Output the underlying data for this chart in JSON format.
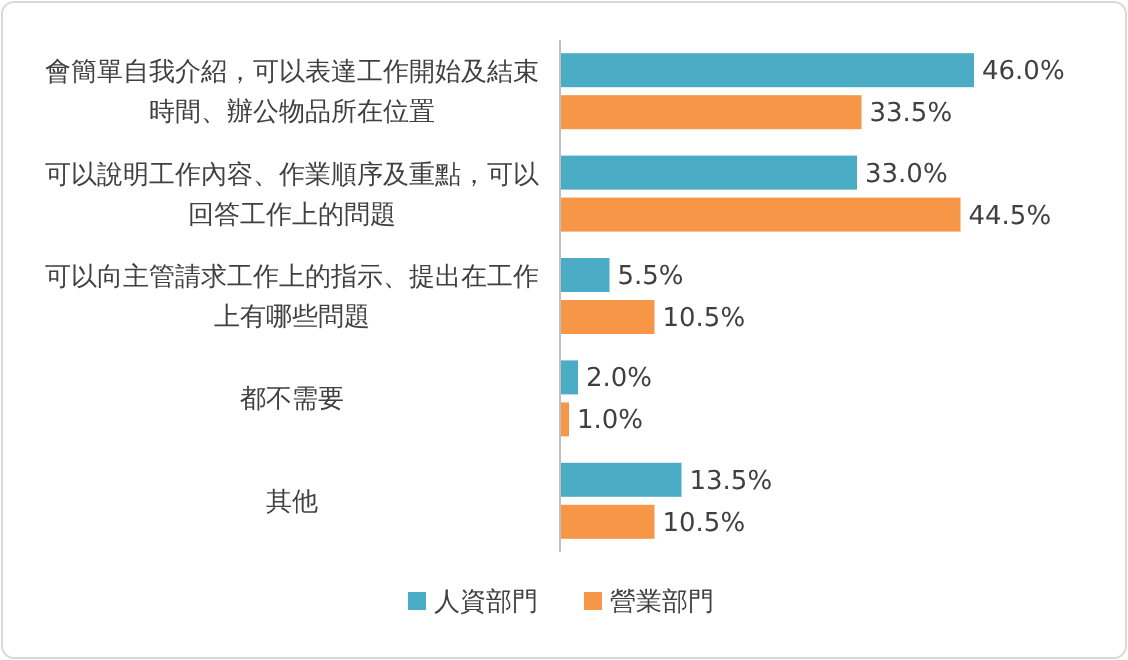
{
  "chart_data": {
    "type": "bar",
    "orientation": "horizontal",
    "legend": "bottom",
    "categories": [
      "會簡單自我介紹，可以表達工作開始及結束時間、辦公物品所在位置",
      "可以說明工作內容、作業順序及重點，可以回答工作上的問題",
      "可以向主管請求工作上的指示、提出在工作上有哪些問題",
      "都不需要",
      "其他"
    ],
    "series": [
      {
        "name": "人資部門",
        "color": "#4bacc6",
        "values": [
          46.0,
          33.0,
          5.5,
          2.0,
          13.5
        ],
        "value_labels": [
          "46.0%",
          "33.0%",
          "5.5%",
          "2.0%",
          "13.5%"
        ]
      },
      {
        "name": "營業部門",
        "color": "#f79646",
        "values": [
          33.5,
          44.5,
          10.5,
          1.0,
          10.5
        ],
        "value_labels": [
          "33.5%",
          "44.5%",
          "10.5%",
          "1.0%",
          "10.5%"
        ]
      }
    ]
  }
}
